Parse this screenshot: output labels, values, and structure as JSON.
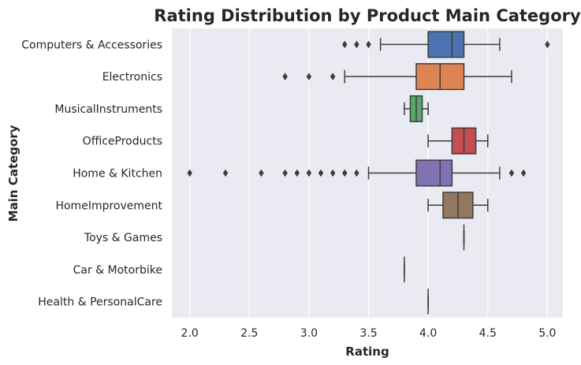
{
  "chart_data": {
    "type": "box",
    "orientation": "horizontal",
    "title": "Rating Distribution by Product Main Category",
    "xlabel": "Rating",
    "ylabel": "Main Category",
    "xlim": [
      1.85,
      5.13
    ],
    "xticks": [
      "2.0",
      "2.5",
      "3.0",
      "3.5",
      "4.0",
      "4.5",
      "5.0"
    ],
    "grid": true,
    "categories": [
      {
        "name": "Computers & Accessories",
        "color": "#4c72b0",
        "whisker_low": 3.6,
        "q1": 4.0,
        "median": 4.2,
        "q3": 4.3,
        "whisker_high": 4.6,
        "outliers": [
          3.3,
          3.4,
          3.5,
          5.0
        ]
      },
      {
        "name": "Electronics",
        "color": "#dd8452",
        "whisker_low": 3.3,
        "q1": 3.9,
        "median": 4.1,
        "q3": 4.3,
        "whisker_high": 4.7,
        "outliers": [
          2.8,
          3.0,
          3.2
        ]
      },
      {
        "name": "MusicalInstruments",
        "color": "#55a868",
        "whisker_low": 3.8,
        "q1": 3.85,
        "median": 3.9,
        "q3": 3.95,
        "whisker_high": 4.0,
        "outliers": []
      },
      {
        "name": "OfficeProducts",
        "color": "#c44e52",
        "whisker_low": 4.0,
        "q1": 4.2,
        "median": 4.3,
        "q3": 4.4,
        "whisker_high": 4.5,
        "outliers": []
      },
      {
        "name": "Home & Kitchen",
        "color": "#8172b3",
        "whisker_low": 3.5,
        "q1": 3.9,
        "median": 4.1,
        "q3": 4.2,
        "whisker_high": 4.6,
        "outliers": [
          2.0,
          2.3,
          2.6,
          2.8,
          2.9,
          3.0,
          3.1,
          3.2,
          3.3,
          3.4,
          4.7,
          4.8
        ]
      },
      {
        "name": "HomeImprovement",
        "color": "#937860",
        "whisker_low": 4.0,
        "q1": 4.125,
        "median": 4.25,
        "q3": 4.375,
        "whisker_high": 4.5,
        "outliers": []
      },
      {
        "name": "Toys & Games",
        "color": "#da8bc3",
        "whisker_low": 4.3,
        "q1": 4.3,
        "median": 4.3,
        "q3": 4.3,
        "whisker_high": 4.3,
        "outliers": []
      },
      {
        "name": "Car & Motorbike",
        "color": "#8c8c8c",
        "whisker_low": 3.8,
        "q1": 3.8,
        "median": 3.8,
        "q3": 3.8,
        "whisker_high": 3.8,
        "outliers": []
      },
      {
        "name": "Health & PersonalCare",
        "color": "#ccb974",
        "whisker_low": 4.0,
        "q1": 4.0,
        "median": 4.0,
        "q3": 4.0,
        "whisker_high": 4.0,
        "outliers": []
      }
    ]
  }
}
